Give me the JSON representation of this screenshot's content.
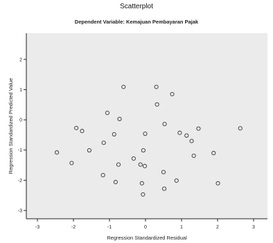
{
  "chart_data": {
    "type": "scatter",
    "title": "Scatterplot",
    "subtitle": "Dependent Variable: Kemajuan Pembayaran Pajak",
    "xlabel": "Regression Standardized Residual",
    "ylabel": "Regression Standardized Predicted Value",
    "xlim": [
      -3,
      3
    ],
    "ylim": [
      -3,
      2.5
    ],
    "xticks": [
      "-3",
      "-2",
      "-1",
      "0",
      "1",
      "2",
      "3"
    ],
    "yticks": [
      "-3",
      "-2",
      "-1",
      "0",
      "1",
      "2"
    ],
    "grid": false,
    "background": "#ebebeb",
    "marker": "hollow-circle",
    "points": [
      {
        "x": -2.46,
        "y": -1.08
      },
      {
        "x": -2.05,
        "y": -1.43
      },
      {
        "x": -1.92,
        "y": -0.27
      },
      {
        "x": -1.76,
        "y": -0.37
      },
      {
        "x": -1.56,
        "y": -1.01
      },
      {
        "x": -1.18,
        "y": -1.83
      },
      {
        "x": -1.16,
        "y": -0.76
      },
      {
        "x": -1.06,
        "y": 0.23
      },
      {
        "x": -0.87,
        "y": -0.48
      },
      {
        "x": -0.83,
        "y": -2.06
      },
      {
        "x": -0.75,
        "y": -1.48
      },
      {
        "x": -0.72,
        "y": 0.03
      },
      {
        "x": -0.61,
        "y": 1.09
      },
      {
        "x": -0.33,
        "y": -1.28
      },
      {
        "x": -0.14,
        "y": -1.48
      },
      {
        "x": -0.1,
        "y": -2.1
      },
      {
        "x": -0.07,
        "y": -2.47
      },
      {
        "x": -0.06,
        "y": -1.01
      },
      {
        "x": -0.02,
        "y": -1.53
      },
      {
        "x": -0.01,
        "y": -0.46
      },
      {
        "x": 0.3,
        "y": 1.09
      },
      {
        "x": 0.32,
        "y": 0.51
      },
      {
        "x": 0.5,
        "y": -1.73
      },
      {
        "x": 0.52,
        "y": -2.28
      },
      {
        "x": 0.53,
        "y": -0.14
      },
      {
        "x": 0.74,
        "y": 0.85
      },
      {
        "x": 0.86,
        "y": -2.01
      },
      {
        "x": 0.95,
        "y": -0.43
      },
      {
        "x": 1.14,
        "y": -0.52
      },
      {
        "x": 1.28,
        "y": -0.7
      },
      {
        "x": 1.34,
        "y": -1.19
      },
      {
        "x": 1.47,
        "y": -0.29
      },
      {
        "x": 1.89,
        "y": -1.1
      },
      {
        "x": 2.01,
        "y": -2.1
      },
      {
        "x": 2.63,
        "y": -0.28
      }
    ]
  }
}
